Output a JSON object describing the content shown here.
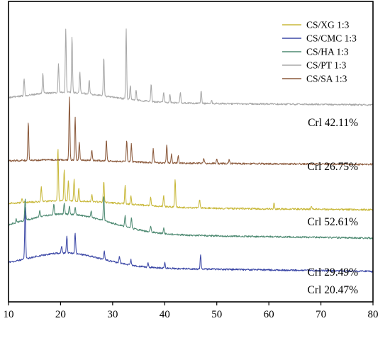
{
  "chart_data": {
    "type": "line",
    "title": "",
    "xlabel": "",
    "ylabel": "",
    "xlim": [
      10,
      80
    ],
    "x_ticks": [
      "10",
      "20",
      "30",
      "40",
      "50",
      "60",
      "70",
      "80"
    ],
    "y_ticks": false,
    "grid": false,
    "legend_position": "top-right",
    "stacked_offset_profiles": true,
    "series": [
      {
        "name": "CS/XG 1:3",
        "color": "#c8b83a",
        "crl_label": "Crl 52.61%",
        "baseline": 296,
        "hump": [
          22,
          15,
          9
        ],
        "decay": [
          0.42,
          0.006
        ],
        "peaks": [
          [
            12.6,
            5
          ],
          [
            16.3,
            22
          ],
          [
            19.5,
            75
          ],
          [
            20.7,
            45
          ],
          [
            21.5,
            28
          ],
          [
            22.6,
            30
          ],
          [
            23.5,
            18
          ],
          [
            26.0,
            10
          ],
          [
            28.3,
            30
          ],
          [
            32.4,
            25
          ],
          [
            33.5,
            12
          ],
          [
            37.3,
            12
          ],
          [
            39.8,
            15
          ],
          [
            42.0,
            40
          ],
          [
            46.7,
            12
          ],
          [
            61.0,
            8
          ],
          [
            68.2,
            5
          ]
        ]
      },
      {
        "name": "CS/CMC 1:3",
        "color": "#3c48a6",
        "crl_label": "Crl 20.47%",
        "baseline": 383,
        "hump": [
          21,
          10,
          20
        ],
        "decay": [
          0.35,
          0.01
        ],
        "peaks": [
          [
            13.2,
            75
          ],
          [
            20.2,
            10
          ],
          [
            21.2,
            25
          ],
          [
            22.8,
            30
          ],
          [
            28.4,
            12
          ],
          [
            31.3,
            10
          ],
          [
            33.5,
            8
          ],
          [
            36.8,
            6
          ],
          [
            40.0,
            8
          ],
          [
            46.9,
            20
          ]
        ]
      },
      {
        "name": "CS/HA 1:3",
        "color": "#4e8a72",
        "crl_label": "Crl 29.49%",
        "baseline": 336,
        "hump": [
          21,
          12,
          28
        ],
        "decay": [
          0.5,
          0.01
        ],
        "peaks": [
          [
            11.5,
            5
          ],
          [
            13.2,
            30
          ],
          [
            16.0,
            10
          ],
          [
            18.7,
            15
          ],
          [
            20.7,
            15
          ],
          [
            21.7,
            12
          ],
          [
            22.8,
            10
          ],
          [
            25.9,
            10
          ],
          [
            28.3,
            35
          ],
          [
            32.4,
            15
          ],
          [
            33.6,
            15
          ],
          [
            37.3,
            8
          ],
          [
            39.8,
            8
          ]
        ]
      },
      {
        "name": "CS/PT 1:3",
        "color": "#a8a8a8",
        "crl_label": "Crl 42.11%",
        "baseline": 148,
        "hump": [
          21,
          12,
          14
        ],
        "decay": [
          0.35,
          0.006
        ],
        "peaks": [
          [
            13.0,
            25
          ],
          [
            16.6,
            28
          ],
          [
            19.6,
            40
          ],
          [
            21.0,
            90
          ],
          [
            22.2,
            80
          ],
          [
            23.7,
            30
          ],
          [
            25.5,
            20
          ],
          [
            28.3,
            55
          ],
          [
            32.6,
            100
          ],
          [
            33.4,
            20
          ],
          [
            34.5,
            15
          ],
          [
            37.4,
            25
          ],
          [
            39.8,
            15
          ],
          [
            41.0,
            12
          ],
          [
            43.0,
            15
          ],
          [
            47.0,
            18
          ],
          [
            49.0,
            5
          ]
        ]
      },
      {
        "name": "CS/SA 1:3",
        "color": "#8b5a3c",
        "crl_label": "Crl 26.75%",
        "baseline": 232,
        "hump": [
          21,
          14,
          4
        ],
        "decay": [
          0.25,
          0.004
        ],
        "peaks": [
          [
            13.8,
            55
          ],
          [
            21.7,
            90
          ],
          [
            22.8,
            60
          ],
          [
            23.6,
            25
          ],
          [
            26.0,
            15
          ],
          [
            28.8,
            30
          ],
          [
            32.7,
            30
          ],
          [
            33.6,
            25
          ],
          [
            37.8,
            20
          ],
          [
            40.4,
            25
          ],
          [
            41.3,
            12
          ],
          [
            42.6,
            10
          ],
          [
            47.5,
            8
          ],
          [
            50.0,
            6
          ],
          [
            52.4,
            6
          ]
        ]
      }
    ]
  }
}
